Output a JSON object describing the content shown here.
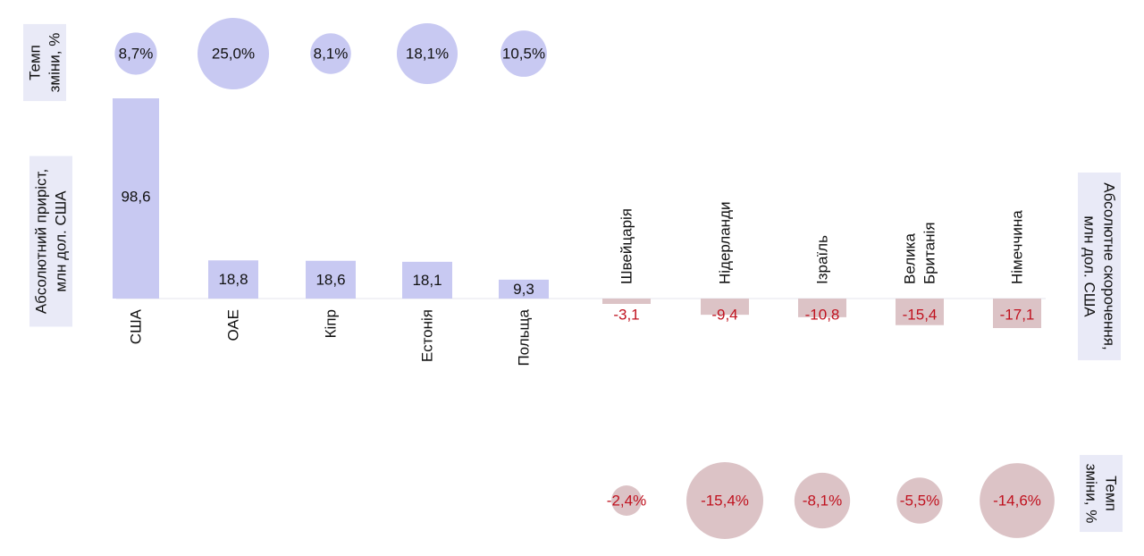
{
  "colors": {
    "growth_bar": "#c8c9f2",
    "growth_bubble": "#c8c9f2",
    "growth_text": "#111111",
    "decline_bar": "#dcc3c6",
    "decline_bubble": "#dcc3c6",
    "decline_text": "#c0121f",
    "axis_label_bg": "#e9eaf7",
    "axis_line": "#e6e6ee"
  },
  "chart_data": {
    "type": "bar",
    "growth": {
      "rate_label": "Темп\nзміни, %",
      "value_label": "Абсолютний приріст,\nмлн дол. США",
      "categories": [
        "США",
        "ОАЕ",
        "Кіпр",
        "Естонія",
        "Польща"
      ],
      "values": [
        98.6,
        18.8,
        18.6,
        18.1,
        9.3
      ],
      "value_labels": [
        "98,6",
        "18,8",
        "18,6",
        "18,1",
        "9,3"
      ],
      "rates": [
        8.7,
        25.0,
        8.1,
        18.1,
        10.5
      ],
      "rate_labels": [
        "8,7%",
        "25,0%",
        "8,1%",
        "18,1%",
        "10,5%"
      ]
    },
    "decline": {
      "rate_label": "Темп\nзміни, %",
      "value_label": "Абсолютне скорочення,\nмлн дол. США",
      "categories": [
        "Швейцарія",
        "Нідерланди",
        "Ізраїль",
        "Велика\nБританія",
        "Німеччина"
      ],
      "values": [
        -3.1,
        -9.4,
        -10.8,
        -15.4,
        -17.1
      ],
      "value_labels": [
        "-3,1",
        "-9,4",
        "-10,8",
        "-15,4",
        "-17,1"
      ],
      "rates": [
        -2.4,
        -15.4,
        -8.1,
        -5.5,
        -14.6
      ],
      "rate_labels": [
        "-2,4%",
        "-15,4%",
        "-8,1%",
        "-5,5%",
        "-14,6%"
      ]
    }
  }
}
